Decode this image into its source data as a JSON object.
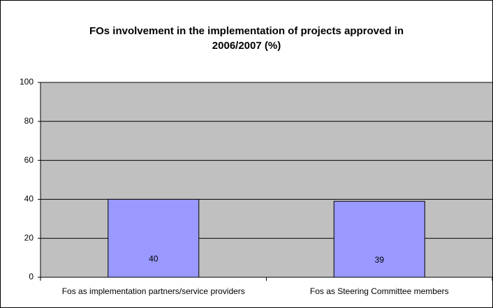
{
  "chart_data": {
    "type": "bar",
    "title": "FOs involvement in the implementation of projects approved in 2006/2007 (%)",
    "categories": [
      "Fos as implementation partners/service providers",
      "Fos as Steering Committee members"
    ],
    "values": [
      40,
      39
    ],
    "color": "#9999ff",
    "plot_background": "#c0c0c0",
    "ylim": [
      0,
      100
    ],
    "yticks": [
      0,
      20,
      40,
      60,
      80,
      100
    ],
    "grid": true
  }
}
